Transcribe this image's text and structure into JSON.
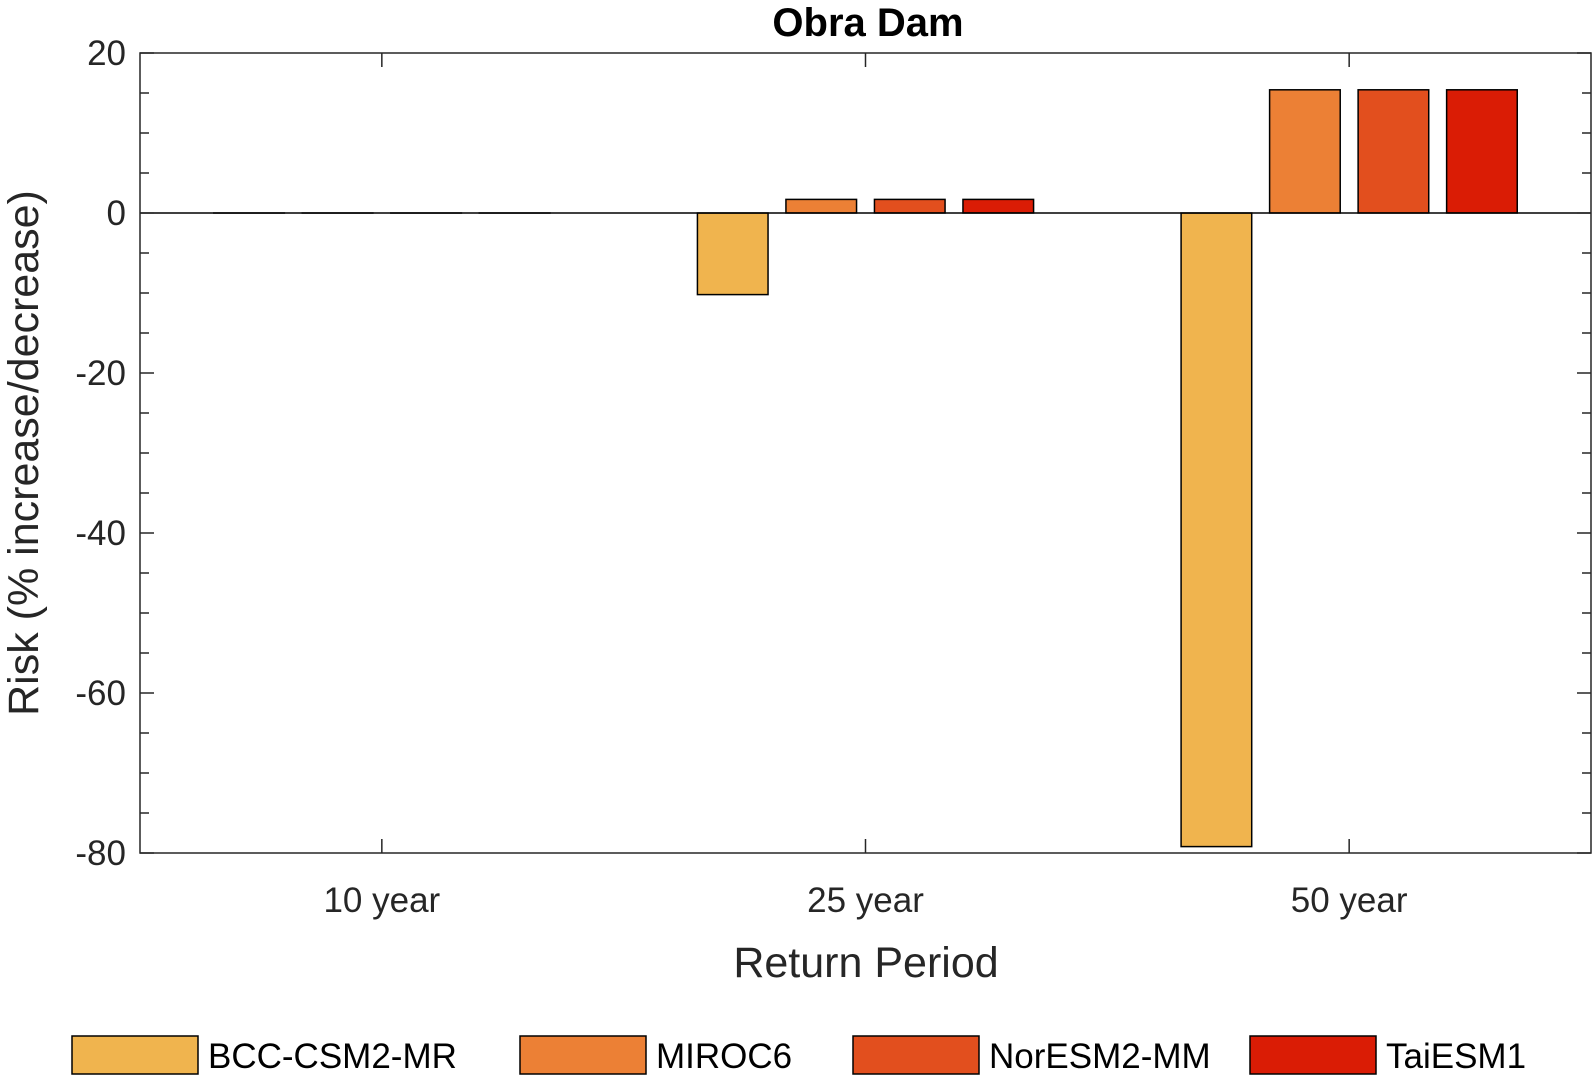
{
  "chart_data": {
    "type": "bar",
    "title": "Obra Dam",
    "xlabel": "Return Period",
    "ylabel": "Risk (% increase/decrease)",
    "categories": [
      "10 year",
      "25 year",
      "50 year"
    ],
    "ylim": [
      -80,
      20
    ],
    "yticks": [
      20,
      0,
      -20,
      -40,
      -60,
      -80
    ],
    "grid": false,
    "legend_position": "bottom",
    "series": [
      {
        "name": "BCC-CSM2-MR",
        "color": "#F0B44E",
        "values": [
          0,
          -10.2,
          -79.2
        ]
      },
      {
        "name": "MIROC6",
        "color": "#EC8035",
        "values": [
          0,
          1.7,
          15.4
        ]
      },
      {
        "name": "NorESM2-MM",
        "color": "#E24F1E",
        "values": [
          0,
          1.7,
          15.4
        ]
      },
      {
        "name": "TaiESM1",
        "color": "#DA1C05",
        "values": [
          0,
          1.7,
          15.4
        ]
      }
    ]
  }
}
